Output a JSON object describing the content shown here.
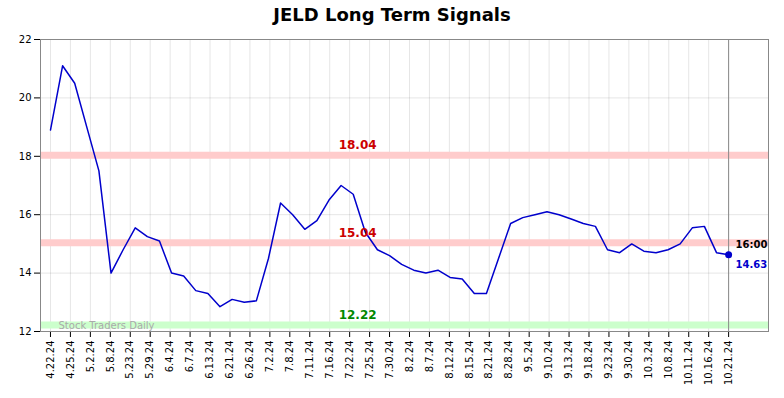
{
  "chart_data": {
    "type": "line",
    "title": "JELD Long Term Signals",
    "x": [
      0,
      0.6071,
      1.2143,
      1.8214,
      2.4286,
      3.0357,
      3.6429,
      4.25,
      4.8571,
      5.4643,
      6.0714,
      6.6786,
      7.2857,
      7.8929,
      8.5,
      9.1071,
      9.7143,
      10.3214,
      10.9286,
      11.5357,
      12.1429,
      12.75,
      13.3571,
      13.9643,
      14.5714,
      15.1786,
      15.7857,
      16.3929,
      17,
      17.6071,
      18.2143,
      18.8214,
      19.4286,
      20.0357,
      20.6429,
      21.25,
      21.8571,
      22.4643,
      23.0714,
      23.6786,
      24.2857,
      24.8929,
      25.5,
      26.1071,
      26.7143,
      27.3214,
      27.9286,
      28.5357,
      29.1429,
      29.75,
      30.3571,
      30.9643,
      31.5714,
      32.1786,
      32.7857,
      33.3929,
      34
    ],
    "values": [
      18.9,
      21.1,
      20.5,
      19.0,
      17.5,
      14.0,
      14.8,
      15.55,
      15.25,
      15.1,
      14.0,
      13.9,
      13.4,
      13.3,
      12.85,
      13.1,
      13.0,
      13.05,
      14.5,
      16.4,
      16.0,
      15.5,
      15.8,
      16.5,
      17.0,
      16.7,
      15.4,
      14.8,
      14.6,
      14.3,
      14.1,
      14.0,
      14.1,
      13.85,
      13.8,
      13.3,
      13.3,
      14.5,
      15.7,
      15.9,
      16.0,
      16.1,
      16.0,
      15.85,
      15.7,
      15.6,
      14.8,
      14.7,
      15.0,
      14.75,
      14.7,
      14.8,
      15.0,
      15.55,
      15.6,
      14.7,
      14.63
    ],
    "color": "#0000cc",
    "xlim": [
      -0.5,
      36
    ],
    "xticks": [
      {
        "value": 0,
        "label": "4.22.24"
      },
      {
        "value": 1,
        "label": "4.25.24"
      },
      {
        "value": 2,
        "label": "5.2.24"
      },
      {
        "value": 3,
        "label": "5.8.24"
      },
      {
        "value": 4,
        "label": "5.23.24"
      },
      {
        "value": 5,
        "label": "5.29.24"
      },
      {
        "value": 6,
        "label": "6.4.24"
      },
      {
        "value": 7,
        "label": "6.7.24"
      },
      {
        "value": 8,
        "label": "6.13.24"
      },
      {
        "value": 9,
        "label": "6.21.24"
      },
      {
        "value": 10,
        "label": "6.26.24"
      },
      {
        "value": 11,
        "label": "7.2.24"
      },
      {
        "value": 12,
        "label": "7.8.24"
      },
      {
        "value": 13,
        "label": "7.11.24"
      },
      {
        "value": 14,
        "label": "7.16.24"
      },
      {
        "value": 15,
        "label": "7.22.24"
      },
      {
        "value": 16,
        "label": "7.25.24"
      },
      {
        "value": 17,
        "label": "7.30.24"
      },
      {
        "value": 18,
        "label": "8.2.24"
      },
      {
        "value": 19,
        "label": "8.7.24"
      },
      {
        "value": 20,
        "label": "8.12.24"
      },
      {
        "value": 21,
        "label": "8.15.24"
      },
      {
        "value": 22,
        "label": "8.21.24"
      },
      {
        "value": 23,
        "label": "8.28.24"
      },
      {
        "value": 24,
        "label": "9.5.24"
      },
      {
        "value": 25,
        "label": "9.10.24"
      },
      {
        "value": 26,
        "label": "9.13.24"
      },
      {
        "value": 27,
        "label": "9.18.24"
      },
      {
        "value": 28,
        "label": "9.23.24"
      },
      {
        "value": 29,
        "label": "9.30.24"
      },
      {
        "value": 30,
        "label": "10.3.24"
      },
      {
        "value": 31,
        "label": "10.8.24"
      },
      {
        "value": 32,
        "label": "10.11.24"
      },
      {
        "value": 33,
        "label": "10.16.24"
      },
      {
        "value": 34,
        "label": "10.21.24"
      }
    ],
    "ylim": [
      12,
      22
    ],
    "yticks": [
      12,
      14,
      16,
      18,
      20,
      22
    ],
    "grid": true,
    "reference_lines": [
      {
        "value": 18.04,
        "label": "18.04",
        "color": "#ffcccc",
        "label_color": "#cc0000"
      },
      {
        "value": 15.04,
        "label": "15.04",
        "color": "#ffcccc",
        "label_color": "#cc0000"
      },
      {
        "value": 12.22,
        "label": "12.22",
        "color": "#ccffcc",
        "label_color": "#008800"
      }
    ],
    "end_line_color": "#888888",
    "annotations": [
      {
        "text": "16:00",
        "color": "#000000"
      },
      {
        "text": "14.63",
        "color": "#0000cc"
      }
    ],
    "watermark": "Stock Traders Daily"
  }
}
